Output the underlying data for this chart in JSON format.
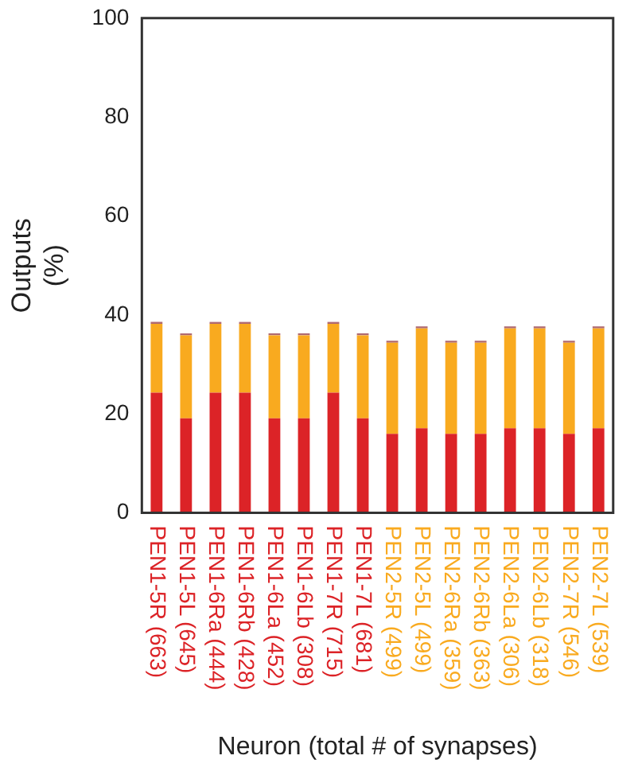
{
  "chart_data": {
    "type": "bar",
    "stacked": true,
    "categories": [
      "PEN1-5R (663)",
      "PEN1-5L (645)",
      "PEN1-6Ra (444)",
      "PEN1-6Rb (428)",
      "PEN1-6La (452)",
      "PEN1-6Lb (308)",
      "PEN1-7R (715)",
      "PEN1-7L (681)",
      "PEN2-5R (499)",
      "PEN2-5L (499)",
      "PEN2-6Ra (359)",
      "PEN2-6Rb (363)",
      "PEN2-6La (306)",
      "PEN2-6Lb (318)",
      "PEN2-7R (546)",
      "PEN2-7L (539)"
    ],
    "series": [
      {
        "color": "#dc2327",
        "values": [
          24.3,
          19.1,
          24.3,
          24.3,
          19.1,
          19.1,
          24.3,
          19.1,
          16.0,
          17.1,
          16.0,
          16.0,
          17.1,
          17.1,
          16.0,
          17.1
        ]
      },
      {
        "color": "#f9aa1f",
        "values": [
          13.9,
          16.8,
          13.9,
          13.9,
          16.8,
          16.8,
          13.9,
          16.8,
          18.4,
          20.2,
          18.4,
          18.4,
          20.2,
          20.2,
          18.4,
          20.2
        ]
      },
      {
        "color": "#b06a70",
        "values": [
          0.4,
          0.4,
          0.4,
          0.4,
          0.4,
          0.4,
          0.4,
          0.4,
          0.4,
          0.4,
          0.4,
          0.4,
          0.4,
          0.4,
          0.4,
          0.4
        ]
      }
    ],
    "ylabel": "Outputs\n(%)",
    "xlabel": "Neuron (total # of synapses)",
    "ylim": [
      0,
      100
    ],
    "yticks": [
      0,
      20,
      40,
      60,
      80,
      100
    ],
    "grid": false,
    "legend": false
  }
}
